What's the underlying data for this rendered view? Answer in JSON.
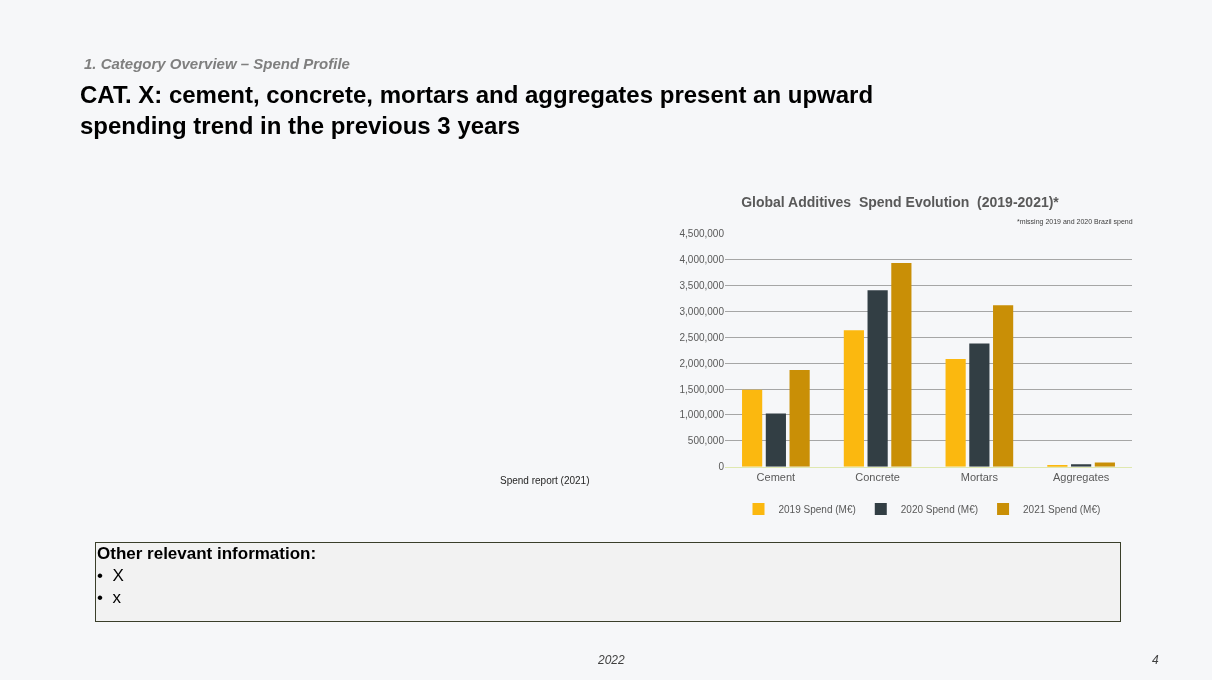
{
  "chart_data": {
    "type": "bar",
    "title": "Global Additives  Spend Evolution  (2019-2021)*",
    "subtitle": "*missing 2019 and 2020 Brazil spend",
    "categories": [
      "Cement",
      "Concrete",
      "Mortars",
      "Aggregates"
    ],
    "series": [
      {
        "name": "2019 Spend (M€)",
        "color": "#fbb80f",
        "values": [
          1490000,
          2640000,
          2080000,
          30000
        ]
      },
      {
        "name": "2020 Spend (M€)",
        "color": "#323e44",
        "values": [
          1030000,
          3410000,
          2380000,
          50000
        ]
      },
      {
        "name": "2021 Spend (M€)",
        "color": "#c98f06",
        "values": [
          1870000,
          3940000,
          3120000,
          80000
        ]
      }
    ],
    "ylim": [
      0,
      4500000
    ],
    "yticks": [
      {
        "value": 0,
        "label": "0"
      },
      {
        "value": 500000,
        "label": "500,000"
      },
      {
        "value": 1000000,
        "label": "1,000,000"
      },
      {
        "value": 1500000,
        "label": "1,500,000"
      },
      {
        "value": 2000000,
        "label": "2,000,000"
      },
      {
        "value": 2500000,
        "label": "2,500,000"
      },
      {
        "value": 3000000,
        "label": "3,000,000"
      },
      {
        "value": 3500000,
        "label": "3,500,000"
      },
      {
        "value": 4000000,
        "label": "4,000,000"
      },
      {
        "value": 4500000,
        "label": "4,500,000"
      }
    ],
    "grid": "y",
    "legend": "bottom",
    "annotations": [
      "1. Category Overview – Spend Profile",
      "CAT. X: cement, concrete, mortars and aggregates present an upward\nspending trend in the previous 3 years",
      "Spend report (2021)",
      "Other relevant information:\n•  X\n•  x",
      "2022",
      "4"
    ]
  }
}
